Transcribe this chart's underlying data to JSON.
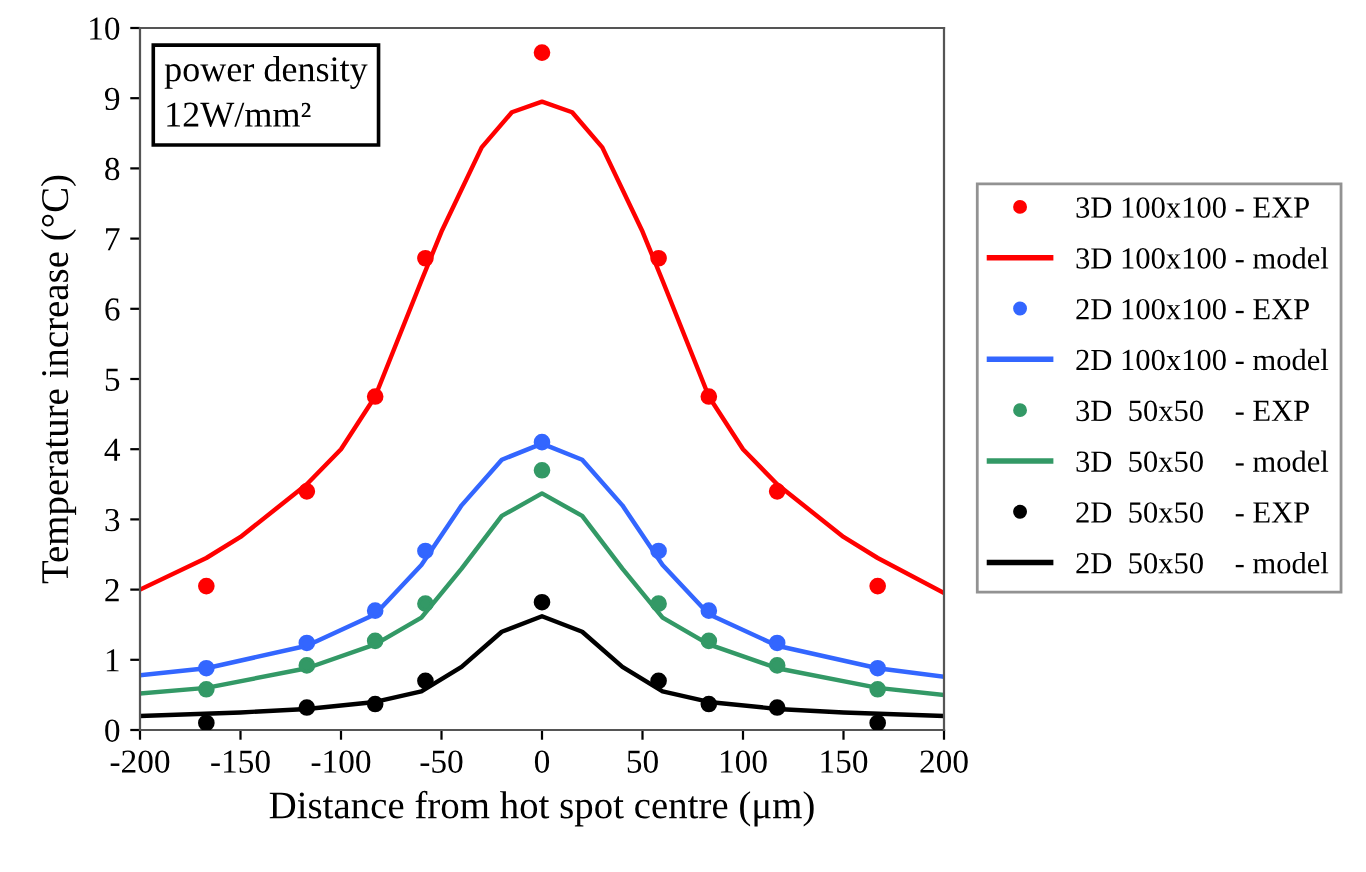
{
  "chart_data": {
    "type": "scatter",
    "xlabel": "Distance from hot spot centre (μm)",
    "ylabel": "Temperature increase (°C)",
    "annotations": [
      "power density\n12W/mm²"
    ],
    "xlim": [
      -200,
      200
    ],
    "xticks": [
      -200,
      -150,
      -100,
      -50,
      0,
      50,
      100,
      150,
      200
    ],
    "ylim": [
      0,
      10
    ],
    "yticks": [
      0,
      1,
      2,
      3,
      4,
      5,
      6,
      7,
      8,
      9,
      10
    ],
    "grid": false,
    "legend": "right",
    "series": [
      {
        "name": "3D 100x100 - EXP",
        "marker": "circle",
        "color": "#ff0000",
        "x": [
          -167,
          -117,
          -83,
          -58,
          0,
          58,
          83,
          117,
          167
        ],
        "values": [
          2.05,
          3.4,
          4.75,
          6.72,
          9.65,
          6.72,
          4.75,
          3.4,
          2.05
        ]
      },
      {
        "name": "3D 100x100 - model",
        "type": "line",
        "marker": "none",
        "color": "#ff0000",
        "x": [
          -200,
          -167,
          -150,
          -117,
          -100,
          -83,
          -60,
          -50,
          -30,
          -15,
          0,
          15,
          30,
          50,
          60,
          83,
          100,
          117,
          150,
          167,
          200
        ],
        "values": [
          2.0,
          2.45,
          2.75,
          3.5,
          4.0,
          4.75,
          6.4,
          7.1,
          8.3,
          8.8,
          8.95,
          8.8,
          8.3,
          7.1,
          6.4,
          4.75,
          4.0,
          3.5,
          2.75,
          2.45,
          1.95
        ]
      },
      {
        "name": "2D 100x100 - EXP",
        "marker": "circle",
        "color": "#3366ff",
        "x": [
          -167,
          -117,
          -83,
          -58,
          0,
          58,
          83,
          117,
          167
        ],
        "values": [
          0.88,
          1.24,
          1.7,
          2.55,
          4.1,
          2.55,
          1.7,
          1.24,
          0.88
        ]
      },
      {
        "name": "2D 100x100 - model",
        "type": "line",
        "marker": "none",
        "color": "#3366ff",
        "x": [
          -200,
          -167,
          -117,
          -83,
          -60,
          -40,
          -20,
          0,
          20,
          40,
          60,
          83,
          117,
          167,
          200
        ],
        "values": [
          0.78,
          0.88,
          1.2,
          1.65,
          2.35,
          3.2,
          3.85,
          4.08,
          3.85,
          3.2,
          2.35,
          1.65,
          1.2,
          0.88,
          0.76
        ]
      },
      {
        "name": "3D  50x50    - EXP",
        "marker": "circle",
        "color": "#339966",
        "x": [
          -167,
          -117,
          -83,
          -58,
          0,
          58,
          83,
          117,
          167
        ],
        "values": [
          0.58,
          0.92,
          1.27,
          1.8,
          3.7,
          1.8,
          1.27,
          0.92,
          0.58
        ]
      },
      {
        "name": "3D  50x50    - model",
        "type": "line",
        "marker": "none",
        "color": "#339966",
        "x": [
          -200,
          -167,
          -117,
          -83,
          -60,
          -40,
          -20,
          0,
          20,
          40,
          60,
          83,
          117,
          167,
          200
        ],
        "values": [
          0.52,
          0.6,
          0.88,
          1.22,
          1.6,
          2.3,
          3.05,
          3.37,
          3.05,
          2.3,
          1.6,
          1.22,
          0.88,
          0.6,
          0.5
        ]
      },
      {
        "name": "2D  50x50    - EXP",
        "marker": "circle",
        "color": "#000000",
        "x": [
          -167,
          -117,
          -83,
          -58,
          0,
          58,
          83,
          117,
          167
        ],
        "values": [
          0.1,
          0.32,
          0.37,
          0.7,
          1.82,
          0.7,
          0.37,
          0.32,
          0.1
        ]
      },
      {
        "name": "2D  50x50    - model",
        "type": "line",
        "marker": "none",
        "color": "#000000",
        "x": [
          -200,
          -150,
          -117,
          -83,
          -60,
          -40,
          -20,
          0,
          20,
          40,
          60,
          83,
          117,
          150,
          200
        ],
        "values": [
          0.2,
          0.25,
          0.3,
          0.4,
          0.55,
          0.9,
          1.4,
          1.62,
          1.4,
          0.9,
          0.55,
          0.4,
          0.3,
          0.25,
          0.2
        ]
      }
    ]
  }
}
